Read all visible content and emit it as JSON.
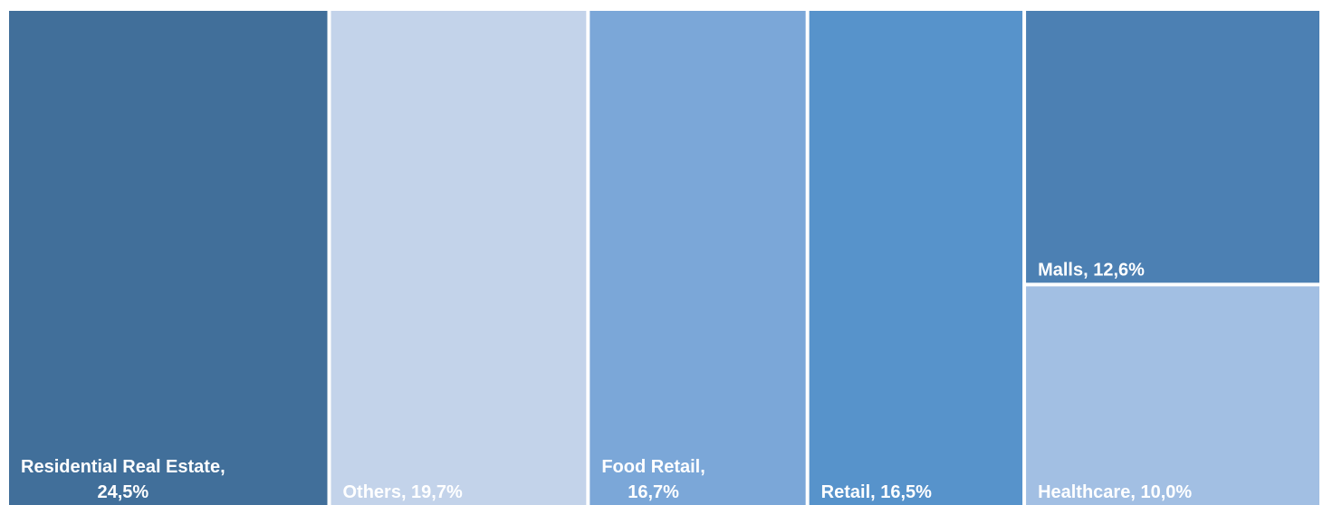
{
  "chart_data": {
    "type": "treemap",
    "labels": [
      "Residential Real Estate, 24,5%",
      "Others, 19,7%",
      "Food Retail, 16,7%",
      "Retail, 16,5%",
      "Malls, 12,6%",
      "Healthcare, 10,0%"
    ],
    "values": [
      24.5,
      19.7,
      16.7,
      16.5,
      12.6,
      10.0
    ],
    "colors": [
      "#416f9a",
      "#c3d3ea",
      "#7ba7d8",
      "#5793cb",
      "#4c80b3",
      "#a2bfe3"
    ]
  }
}
